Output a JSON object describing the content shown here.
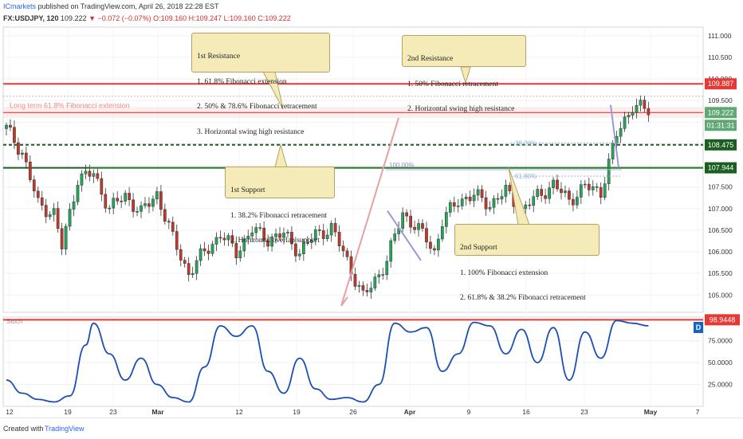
{
  "header": {
    "publisher": "ICmarkets",
    "published_text": " published on TradingView.com, April 26, 2018 22:28 EST",
    "symbol": "FX:USDJPY, 120",
    "last": "109.222",
    "change": "▼ −0.072 (−0.07%)",
    "ohlc": "O:109.160 H:109.247 L:109.160 C:109.222"
  },
  "footer": {
    "created_with": "Created with",
    "brand": "TradingView"
  },
  "annotations": {
    "res1": {
      "title": "1st Resistance",
      "lines": [
        "1. 61.8% Fibonacci extension",
        "2. 50% & 78.6% Fibonacci retracement",
        "3. Horizontal swing high resistance"
      ]
    },
    "res2": {
      "title": "2nd Resistance",
      "lines": [
        "1. 50% Fibonacci retracement",
        "2. Horizontal swing high resistance"
      ]
    },
    "sup1": {
      "title": "1st Support",
      "lines": [
        "1. 38.2% Fibonacci retracement",
        "2. Horizontal overlap support"
      ]
    },
    "sup2": {
      "title": "2nd Support",
      "lines": [
        "1. 100% Fibonacci extension",
        "2. 61.8% & 38.2% Fibonacci retracement"
      ]
    },
    "long_term": "Long term 61.8% Fibonacci extension",
    "fib_100": "100.00%",
    "fib_38": "38.20%",
    "fib_618": "61.80%"
  },
  "chart_data": [
    {
      "type": "candlestick",
      "title": "FX:USDJPY, 120",
      "y_range": [
        104.6,
        111.2
      ],
      "y_ticks": [
        105.0,
        105.5,
        106.0,
        106.5,
        107.0,
        107.5,
        108.0,
        108.5,
        109.0,
        109.5,
        110.0,
        110.5,
        111.0
      ],
      "y_tick_labels": [
        "105.000",
        "105.500",
        "106.000",
        "106.500",
        "107.000",
        "107.500",
        "108.000",
        "108.500",
        "109.000",
        "109.500",
        "110.000",
        "110.500",
        "111.000"
      ],
      "x_tick_labels": [
        "12",
        "19",
        "23",
        "Mar",
        "12",
        "19",
        "26",
        "Apr",
        "9",
        "16",
        "23",
        "May",
        "7"
      ],
      "levels": [
        {
          "value": 109.887,
          "label": "109.887",
          "color": "#e53935",
          "style": "solid"
        },
        {
          "value": 109.222,
          "label": "109.222",
          "color": "#4caf50",
          "style": "last"
        },
        {
          "value": 108.475,
          "label": "108.475",
          "color": "#1b5e20",
          "style": "dashed"
        },
        {
          "value": 107.944,
          "label": "107.944",
          "color": "#1b5e20",
          "style": "solid"
        }
      ],
      "countdown": "01:31:31",
      "grid": true,
      "legend": "none",
      "price_path": [
        [
          0,
          108.85
        ],
        [
          4,
          108.3
        ],
        [
          8,
          107.1
        ],
        [
          12,
          106.9
        ],
        [
          14,
          106.1
        ],
        [
          18,
          107.7
        ],
        [
          22,
          107.8
        ],
        [
          26,
          107.0
        ],
        [
          30,
          107.3
        ],
        [
          34,
          106.9
        ],
        [
          38,
          107.35
        ],
        [
          42,
          106.3
        ],
        [
          46,
          105.5
        ],
        [
          50,
          106.0
        ],
        [
          54,
          106.4
        ],
        [
          58,
          106.0
        ],
        [
          62,
          106.5
        ],
        [
          66,
          106.3
        ],
        [
          70,
          106.4
        ],
        [
          74,
          106.0
        ],
        [
          78,
          106.4
        ],
        [
          82,
          106.55
        ],
        [
          86,
          105.8
        ],
        [
          90,
          104.95
        ],
        [
          92,
          105.2
        ],
        [
          96,
          105.8
        ],
        [
          100,
          106.9
        ],
        [
          104,
          106.5
        ],
        [
          106,
          106.3
        ],
        [
          108,
          106.0
        ],
        [
          110,
          106.7
        ],
        [
          114,
          107.2
        ],
        [
          118,
          107.3
        ],
        [
          122,
          107.1
        ],
        [
          126,
          107.4
        ],
        [
          130,
          106.95
        ],
        [
          134,
          107.3
        ],
        [
          138,
          107.55
        ],
        [
          142,
          107.2
        ],
        [
          146,
          107.5
        ],
        [
          150,
          107.4
        ],
        [
          154,
          108.7
        ],
        [
          158,
          109.4
        ],
        [
          162,
          109.25
        ]
      ]
    },
    {
      "type": "line",
      "title": "Stoch",
      "y_range": [
        0,
        102
      ],
      "y_ticks": [
        25,
        50,
        75
      ],
      "y_tick_labels": [
        "25.0000",
        "50.0000",
        "75.0000"
      ],
      "marker": {
        "value": 98.9448,
        "label": "98.9448",
        "color": "#e53935"
      },
      "legend": "none",
      "indicator_key": "D",
      "values": [
        [
          0,
          30
        ],
        [
          4,
          15
        ],
        [
          8,
          8
        ],
        [
          12,
          5
        ],
        [
          16,
          12
        ],
        [
          20,
          70
        ],
        [
          22,
          95
        ],
        [
          26,
          60
        ],
        [
          30,
          30
        ],
        [
          34,
          55
        ],
        [
          38,
          25
        ],
        [
          42,
          10
        ],
        [
          46,
          5
        ],
        [
          50,
          45
        ],
        [
          54,
          92
        ],
        [
          58,
          80
        ],
        [
          62,
          92
        ],
        [
          66,
          40
        ],
        [
          70,
          15
        ],
        [
          74,
          55
        ],
        [
          78,
          20
        ],
        [
          82,
          8
        ],
        [
          86,
          10
        ],
        [
          90,
          5
        ],
        [
          94,
          25
        ],
        [
          98,
          95
        ],
        [
          102,
          85
        ],
        [
          106,
          90
        ],
        [
          110,
          40
        ],
        [
          114,
          60
        ],
        [
          118,
          96
        ],
        [
          122,
          92
        ],
        [
          126,
          60
        ],
        [
          130,
          88
        ],
        [
          134,
          50
        ],
        [
          138,
          90
        ],
        [
          142,
          30
        ],
        [
          146,
          85
        ],
        [
          150,
          55
        ],
        [
          154,
          98
        ],
        [
          158,
          95
        ],
        [
          162,
          92
        ]
      ]
    }
  ]
}
